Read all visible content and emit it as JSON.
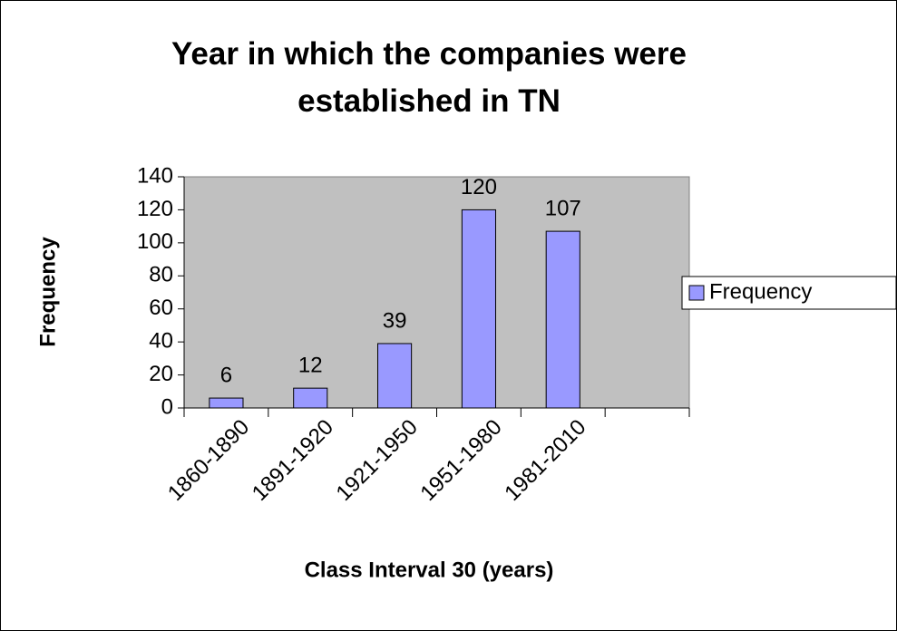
{
  "chart_data": {
    "type": "bar",
    "title": "Year in which the companies were established in TN",
    "x_label": "Class Interval 30 (years)",
    "y_label": "Frequency",
    "categories": [
      "1860-1890",
      "1891-1920",
      "1921-1950",
      "1951-1980",
      "1981-2010",
      null
    ],
    "series": [
      {
        "name": "Frequency",
        "color": "#9999ff",
        "values": [
          6,
          12,
          39,
          120,
          107,
          null
        ]
      }
    ],
    "ylim": [
      0,
      140
    ],
    "yticks": [
      0,
      20,
      40,
      60,
      80,
      100,
      120,
      140
    ],
    "legend": "right",
    "plot_background": "#c0c0c0"
  }
}
